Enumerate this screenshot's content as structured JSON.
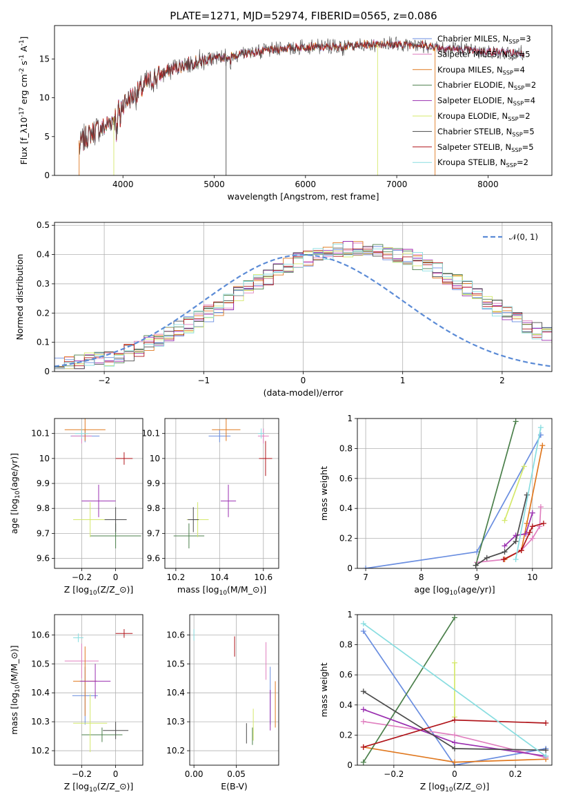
{
  "title": "PLATE=1271, MJD=52974, FIBERID=0565, z=0.086",
  "colors": {
    "chabrier_miles": "#6a8ee0",
    "salpeter_miles": "#e07fbf",
    "kroupa_miles": "#e0781f",
    "chabrier_elodie": "#4a7f4a",
    "salpeter_elodie": "#9a2fb0",
    "kroupa_elodie": "#d4e86a",
    "chabrier_stelib": "#4a4a4a",
    "salpeter_stelib": "#b0141a",
    "kroupa_stelib": "#88dde0",
    "normal": "#5b8bd6"
  },
  "legend_items": [
    "Chabrier MILES, N$_{SSP}$=3",
    "Salpeter MILES, N$_{SSP}$=5",
    "Kroupa MILES, N$_{SSP}$=4",
    "Chabrier ELODIE, N$_{SSP}$=2",
    "Salpeter ELODIE, N$_{SSP}$=4",
    "Kroupa ELODIE, N$_{SSP}$=2",
    "Chabrier STELIB, N$_{SSP}$=5",
    "Salpeter STELIB, N$_{SSP}$=5",
    "Kroupa STELIB, N$_{SSP}$=2"
  ],
  "chart_data": [
    {
      "type": "line",
      "id": "spectrum",
      "xlabel": "wavelength [Angstrom, rest frame]",
      "ylabel": "Flux [f$_λ$10$^{-17}$ erg cm$^{-2}$ s$^{-1}$ A$^{-1}$]",
      "xlim": [
        3250,
        8700
      ],
      "ylim": [
        0,
        19.3
      ],
      "xticks": [
        4000,
        5000,
        6000,
        7000,
        8000
      ],
      "yticks": [
        0,
        5,
        10,
        15
      ],
      "continuum": {
        "x": [
          3520,
          3600,
          3700,
          3800,
          3900,
          4000,
          4100,
          4200,
          4300,
          4400,
          4500,
          4600,
          4700,
          4800,
          4900,
          5000,
          5200,
          5400,
          5600,
          5800,
          6000,
          6200,
          6400,
          6600,
          6800,
          7000,
          7200,
          7400,
          7600,
          7800,
          8000,
          8200,
          8400
        ],
        "y": [
          3.8,
          5.0,
          5.8,
          6.2,
          7.5,
          9.3,
          10.2,
          11.0,
          12.3,
          12.8,
          13.5,
          14.0,
          14.3,
          14.6,
          14.9,
          15.0,
          15.4,
          15.8,
          16.1,
          16.4,
          16.6,
          16.5,
          16.6,
          16.8,
          17.0,
          16.8,
          16.9,
          16.6,
          16.3,
          16.1,
          16.0,
          15.8,
          15.8
        ]
      }
    },
    {
      "type": "bar",
      "id": "residuals",
      "xlabel": "(data-model)/error",
      "ylabel": "Normed distribution",
      "xlim": [
        -2.5,
        2.5
      ],
      "ylim": [
        0,
        0.51
      ],
      "xticks": [
        -2,
        -1,
        0,
        1,
        2
      ],
      "yticks": [
        0.0,
        0.1,
        0.2,
        0.3,
        0.4,
        0.5
      ],
      "legend": "$\\mathcal{N}(0, 1)$",
      "bin_width": 0.1,
      "bin_start": -2.5,
      "envelope": [
        0.02,
        0.023,
        0.028,
        0.034,
        0.04,
        0.047,
        0.055,
        0.066,
        0.079,
        0.095,
        0.11,
        0.127,
        0.144,
        0.16,
        0.18,
        0.2,
        0.22,
        0.24,
        0.262,
        0.285,
        0.305,
        0.325,
        0.345,
        0.362,
        0.377,
        0.39,
        0.4,
        0.41,
        0.415,
        0.418,
        0.42,
        0.42,
        0.415,
        0.41,
        0.4,
        0.39,
        0.378,
        0.363,
        0.345,
        0.325,
        0.305,
        0.285,
        0.263,
        0.24,
        0.218,
        0.198,
        0.178,
        0.158,
        0.14,
        0.122,
        0.106,
        0.092,
        0.08,
        0.07,
        0.06,
        0.052,
        0.045,
        0.04,
        0.035,
        0.03
      ]
    },
    {
      "type": "scatter",
      "id": "age_vs_Z",
      "xlabel": "Z [log$_{10}$($Z/Z_⊙$)]",
      "ylabel": "age  [log$_{10}$($age/yr$)]",
      "xlim": [
        -0.36,
        0.16
      ],
      "ylim": [
        9.56,
        10.16
      ],
      "xticks": [
        -0.2,
        0.0
      ],
      "yticks": [
        9.6,
        9.7,
        9.8,
        9.9,
        10.0,
        10.1
      ],
      "series": [
        {
          "c": "chabrier_miles",
          "x": -0.18,
          "y": 10.09,
          "xe": 0.17,
          "ye": 0.05
        },
        {
          "c": "salpeter_miles",
          "x": -0.2,
          "y": 10.09,
          "xe": 0.12,
          "ye": 0.06
        },
        {
          "c": "kroupa_miles",
          "x": -0.18,
          "y": 10.115,
          "xe": 0.24,
          "ye": 0.09
        },
        {
          "c": "chabrier_elodie",
          "x": 0.0,
          "y": 9.69,
          "xe": 0.3,
          "ye": 0.1
        },
        {
          "c": "salpeter_elodie",
          "x": -0.1,
          "y": 9.83,
          "xe": 0.2,
          "ye": 0.13
        },
        {
          "c": "kroupa_elodie",
          "x": -0.15,
          "y": 9.755,
          "xe": 0.2,
          "ye": 0.14
        },
        {
          "c": "chabrier_stelib",
          "x": 0.0,
          "y": 9.755,
          "xe": 0.13,
          "ye": 0.1
        },
        {
          "c": "salpeter_stelib",
          "x": 0.05,
          "y": 10.0,
          "xe": 0.1,
          "ye": 0.05
        },
        {
          "c": "kroupa_stelib",
          "x": -0.2,
          "y": 10.1,
          "xe": 0.08,
          "ye": 0.04
        }
      ]
    },
    {
      "type": "scatter",
      "id": "age_vs_mass",
      "xlabel": "mass [log$_{10}$($M/M_⊙$)]",
      "ylabel": "",
      "xlim": [
        10.15,
        10.67
      ],
      "ylim": [
        9.56,
        10.16
      ],
      "xticks": [
        10.2,
        10.4,
        10.6
      ],
      "yticks": [
        9.6,
        9.7,
        9.8,
        9.9,
        10.0,
        10.1
      ],
      "series": [
        {
          "c": "chabrier_miles",
          "x": 10.4,
          "y": 10.09,
          "xe": 0.1,
          "ye": 0.05
        },
        {
          "c": "salpeter_miles",
          "x": 10.6,
          "y": 10.09,
          "xe": 0.05,
          "ye": 0.06
        },
        {
          "c": "kroupa_miles",
          "x": 10.43,
          "y": 10.115,
          "xe": 0.13,
          "ye": 0.09
        },
        {
          "c": "chabrier_elodie",
          "x": 10.26,
          "y": 9.69,
          "xe": 0.14,
          "ye": 0.1
        },
        {
          "c": "salpeter_elodie",
          "x": 10.44,
          "y": 9.83,
          "xe": 0.07,
          "ye": 0.13
        },
        {
          "c": "kroupa_elodie",
          "x": 10.3,
          "y": 9.755,
          "xe": 0.1,
          "ye": 0.14
        },
        {
          "c": "chabrier_stelib",
          "x": 10.28,
          "y": 9.755,
          "xe": 0.05,
          "ye": 0.1
        },
        {
          "c": "salpeter_stelib",
          "x": 10.61,
          "y": 10.0,
          "xe": 0.06,
          "ye": 0.14
        },
        {
          "c": "kroupa_stelib",
          "x": 10.59,
          "y": 10.1,
          "xe": 0.03,
          "ye": 0.04
        }
      ]
    },
    {
      "type": "line",
      "id": "weight_vs_age",
      "xlabel": "age  [log$_{10}$($age/yr$)]",
      "ylabel": "mass weight",
      "xlim": [
        6.85,
        10.35
      ],
      "ylim": [
        0,
        1.0
      ],
      "xticks": [
        7,
        8,
        9,
        10
      ],
      "yticks": [
        0.0,
        0.2,
        0.4,
        0.6,
        0.8,
        1.0
      ],
      "series": [
        {
          "c": "chabrier_miles",
          "x": [
            7.0,
            9.0,
            10.15
          ],
          "y": [
            0.0,
            0.11,
            0.89
          ]
        },
        {
          "c": "salpeter_miles",
          "x": [
            9.0,
            9.5,
            9.8,
            10.0,
            10.13,
            10.15
          ],
          "y": [
            0.04,
            0.06,
            0.12,
            0.2,
            0.28,
            0.41
          ]
        },
        {
          "c": "kroupa_miles",
          "x": [
            9.5,
            9.8,
            9.9,
            10.18
          ],
          "y": [
            0.06,
            0.12,
            0.3,
            0.82
          ]
        },
        {
          "c": "chabrier_elodie",
          "x": [
            8.98,
            9.7
          ],
          "y": [
            0.02,
            0.98
          ]
        },
        {
          "c": "salpeter_elodie",
          "x": [
            9.5,
            9.7,
            9.88,
            10.0
          ],
          "y": [
            0.15,
            0.22,
            0.23,
            0.37
          ]
        },
        {
          "c": "kroupa_elodie",
          "x": [
            9.5,
            9.85
          ],
          "y": [
            0.32,
            0.68
          ]
        },
        {
          "c": "chabrier_stelib",
          "x": [
            8.98,
            9.18,
            9.5,
            9.7,
            9.9
          ],
          "y": [
            0.02,
            0.07,
            0.11,
            0.18,
            0.49
          ]
        },
        {
          "c": "salpeter_stelib",
          "x": [
            9.48,
            9.8,
            9.95,
            10.0,
            10.2
          ],
          "y": [
            0.06,
            0.12,
            0.24,
            0.28,
            0.3
          ]
        },
        {
          "c": "kroupa_stelib",
          "x": [
            9.7,
            10.15
          ],
          "y": [
            0.06,
            0.94
          ]
        }
      ]
    },
    {
      "type": "scatter",
      "id": "mass_vs_Z",
      "xlabel": "Z [log$_{10}$($Z/Z_⊙$)]",
      "ylabel": "mass [log$_{10}$($M/M_⊙$)]",
      "xlim": [
        -0.36,
        0.16
      ],
      "ylim": [
        10.15,
        10.67
      ],
      "xticks": [
        -0.2,
        0.0
      ],
      "yticks": [
        10.2,
        10.3,
        10.4,
        10.5,
        10.6
      ],
      "series": [
        {
          "c": "chabrier_miles",
          "x": -0.18,
          "y": 10.39,
          "xe": 0.15,
          "ye": 0.2
        },
        {
          "c": "salpeter_miles",
          "x": -0.2,
          "y": 10.51,
          "xe": 0.2,
          "ye": 0.12
        },
        {
          "c": "kroupa_miles",
          "x": -0.18,
          "y": 10.44,
          "xe": 0.14,
          "ye": 0.24
        },
        {
          "c": "chabrier_elodie",
          "x": -0.08,
          "y": 10.255,
          "xe": 0.24,
          "ye": 0.05
        },
        {
          "c": "salpeter_elodie",
          "x": -0.12,
          "y": 10.44,
          "xe": 0.18,
          "ye": 0.12
        },
        {
          "c": "kroupa_elodie",
          "x": -0.15,
          "y": 10.295,
          "xe": 0.2,
          "ye": 0.2
        },
        {
          "c": "chabrier_stelib",
          "x": 0.0,
          "y": 10.27,
          "xe": 0.15,
          "ye": 0.06
        },
        {
          "c": "salpeter_stelib",
          "x": 0.05,
          "y": 10.605,
          "xe": 0.1,
          "ye": 0.03
        },
        {
          "c": "kroupa_stelib",
          "x": -0.22,
          "y": 10.59,
          "xe": 0.06,
          "ye": 0.03
        }
      ]
    },
    {
      "type": "scatter",
      "id": "mass_vs_EBV",
      "xlabel": "E(B-V)",
      "ylabel": "",
      "xlim": [
        -0.005,
        0.1
      ],
      "ylim": [
        10.15,
        10.67
      ],
      "xticks": [
        0.0,
        0.05
      ],
      "xticklabels": [
        "0.00",
        "0.05"
      ],
      "yticks": [
        10.2,
        10.3,
        10.4,
        10.5,
        10.6
      ],
      "series": [
        {
          "c": "chabrier_miles",
          "x": 0.09,
          "y": 10.39,
          "ye": 0.2
        },
        {
          "c": "salpeter_miles",
          "x": 0.085,
          "y": 10.51,
          "ye": 0.13
        },
        {
          "c": "kroupa_miles",
          "x": 0.096,
          "y": 10.36,
          "ye": 0.16
        },
        {
          "c": "chabrier_elodie",
          "x": 0.069,
          "y": 10.25,
          "ye": 0.06
        },
        {
          "c": "salpeter_elodie",
          "x": 0.09,
          "y": 10.34,
          "ye": 0.14
        },
        {
          "c": "kroupa_elodie",
          "x": 0.07,
          "y": 10.29,
          "ye": 0.11
        },
        {
          "c": "chabrier_stelib",
          "x": 0.062,
          "y": 10.26,
          "ye": 0.07
        },
        {
          "c": "salpeter_stelib",
          "x": 0.048,
          "y": 10.56,
          "ye": 0.07
        },
        {
          "c": "kroupa_stelib",
          "x": 0.0,
          "y": 10.6,
          "ye": 0.04
        }
      ]
    },
    {
      "type": "line",
      "id": "weight_vs_Z",
      "xlabel": "Z [log$_{10}$($Z/Z_⊙$)]",
      "ylabel": "mass weight",
      "xlim": [
        -0.32,
        0.32
      ],
      "ylim": [
        0,
        1.0
      ],
      "xticks": [
        -0.2,
        0.0,
        0.2
      ],
      "yticks": [
        0.0,
        0.2,
        0.4,
        0.6,
        0.8,
        1.0
      ],
      "series": [
        {
          "c": "chabrier_miles",
          "x": [
            -0.3,
            0.0,
            0.3
          ],
          "y": [
            0.89,
            0.0,
            0.11
          ]
        },
        {
          "c": "salpeter_miles",
          "x": [
            -0.3,
            0.0,
            0.3
          ],
          "y": [
            0.29,
            0.2,
            0.05
          ]
        },
        {
          "c": "kroupa_miles",
          "x": [
            -0.3,
            0.0,
            0.3
          ],
          "y": [
            0.12,
            0.02,
            0.04
          ]
        },
        {
          "c": "chabrier_elodie",
          "x": [
            -0.3,
            0.0
          ],
          "y": [
            0.02,
            0.98
          ]
        },
        {
          "c": "salpeter_elodie",
          "x": [
            -0.3,
            0.0,
            0.3
          ],
          "y": [
            0.37,
            0.15,
            0.06
          ]
        },
        {
          "c": "kroupa_elodie",
          "x": [
            0.0,
            0.0
          ],
          "y": [
            0.32,
            0.68
          ]
        },
        {
          "c": "chabrier_stelib",
          "x": [
            -0.3,
            0.0,
            0.3
          ],
          "y": [
            0.49,
            0.11,
            0.1
          ]
        },
        {
          "c": "salpeter_stelib",
          "x": [
            -0.3,
            0.0,
            0.3
          ],
          "y": [
            0.12,
            0.3,
            0.28
          ]
        },
        {
          "c": "kroupa_stelib",
          "x": [
            -0.3,
            0.3
          ],
          "y": [
            0.94,
            0.06
          ]
        }
      ]
    }
  ]
}
